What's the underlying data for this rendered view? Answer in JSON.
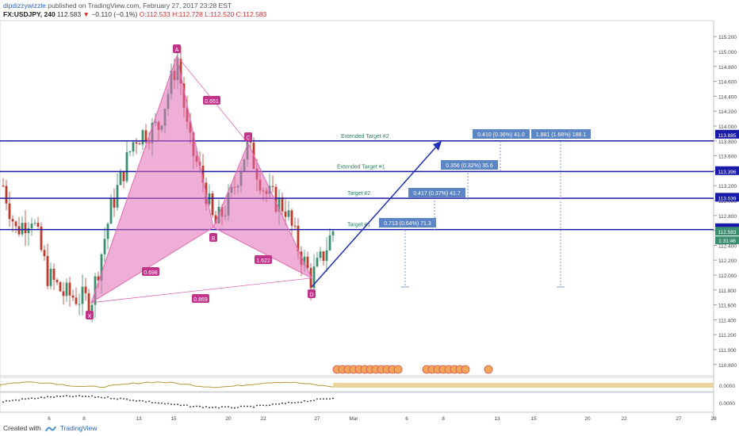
{
  "header": {
    "author": "dipdizzywizzle",
    "published": "published on TradingView.com, February 27, 2017 23:28 EST",
    "symbol": "FX:USDJPY, 240",
    "last": "112.583",
    "change": "−0.110 (−0.1%)",
    "ohlc_o": "O:112.533",
    "ohlc_h": "H:112.728",
    "ohlc_l": "L:112.520",
    "ohlc_c": "C:112.583"
  },
  "footer": {
    "created_with": "Created with",
    "brand": "TradingView"
  },
  "colors": {
    "up": "#3b8f6e",
    "down": "#c0392b",
    "pattern": "#e06bb3",
    "pattern_label": "#c2338a",
    "level": "#1a1aa8",
    "arrow": "#1f2fb8",
    "box": "#5b85c4",
    "osc": "#b59a3a"
  },
  "chart_data": {
    "type": "line",
    "title": "",
    "xlabel": "",
    "ylabel": "",
    "ylim": [
      110.6,
      115.3
    ],
    "x_ticks": [
      "6",
      "8",
      "13",
      "15",
      "20",
      "22",
      "27",
      "Mar",
      "6",
      "8",
      "13",
      "15",
      "20",
      "22",
      "27",
      "29"
    ],
    "y_ticks": [
      "115.200",
      "115.000",
      "114.800",
      "114.600",
      "114.400",
      "114.200",
      "114.000",
      "113.800",
      "113.600",
      "113.400",
      "113.200",
      "113.000",
      "112.800",
      "112.600",
      "112.400",
      "112.200",
      "112.000",
      "111.800",
      "111.600",
      "111.400",
      "111.200",
      "111.000",
      "110.800"
    ],
    "price_labels": [
      {
        "text": "113.885",
        "value": 113.885
      },
      {
        "text": "113.396",
        "value": 113.396
      },
      {
        "text": "113.039",
        "value": 113.039
      },
      {
        "text": "112.630",
        "value": 112.63
      },
      {
        "text": "112.583",
        "value": 112.583
      }
    ],
    "countdown": "1:31:46",
    "levels": [
      {
        "name": "Extended Target #2",
        "value": 113.8
      },
      {
        "name": "Extended Target #1",
        "value": 113.39
      },
      {
        "name": "Target #2",
        "value": 113.03
      },
      {
        "name": "Target #1",
        "value": 112.61
      }
    ],
    "pattern_points": [
      {
        "label": "X",
        "value": 111.63
      },
      {
        "label": "A",
        "value": 114.94
      },
      {
        "label": "B",
        "value": 112.64
      },
      {
        "label": "C",
        "value": 113.77
      },
      {
        "label": "D",
        "value": 111.96
      }
    ],
    "ratios": [
      "0.651",
      "0.698",
      "1.622",
      "0.869"
    ],
    "measures": [
      "0.713 (0.64%) 71.3",
      "0.417 (0.37%) 41.7",
      "0.356 (0.32%) 35.6",
      "0.410 (0.36%) 41.0",
      "1.881 (1.68%) 188.1"
    ],
    "osc_labels": [
      "0.0000",
      "0.0000"
    ]
  }
}
